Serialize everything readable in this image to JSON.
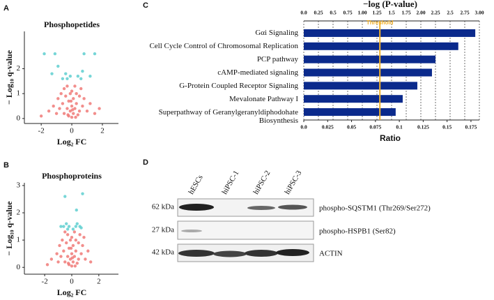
{
  "chart_data": [
    {
      "type": "scatter",
      "panel": "A",
      "title": "Phosphopetides",
      "xlabel": "Log₂ FC",
      "ylabel": "− Log₁₀ q-value",
      "xlim": [
        -3.1,
        3.05
      ],
      "ylim": [
        -0.2,
        3.5
      ],
      "xticks": [
        -2,
        0,
        2
      ],
      "yticks": [
        0,
        1,
        2
      ],
      "series": [
        {
          "color": "#f07a78",
          "x": [
            -1.5,
            -1.2,
            -1,
            -0.9,
            -0.8,
            -0.7,
            -0.6,
            -0.5,
            -0.5,
            -0.4,
            -0.3,
            -0.3,
            -0.2,
            -0.2,
            -0.1,
            -0.1,
            0,
            0,
            0,
            0.1,
            0.1,
            0.2,
            0.2,
            0.3,
            0.3,
            0.4,
            0.5,
            0.5,
            0.6,
            0.7,
            0.8,
            1.0,
            1.2,
            1.5,
            -2.0,
            1.8,
            -0.05,
            0.05,
            -0.25,
            0.25
          ],
          "values": [
            0.3,
            0.5,
            0.2,
            0.8,
            0.4,
            1.0,
            0.6,
            0.2,
            1.2,
            0.9,
            0.4,
            1.3,
            0.1,
            0.7,
            1.0,
            0.3,
            0.05,
            0.5,
            1.1,
            0.2,
            0.8,
            1.3,
            0.4,
            0.6,
            1.0,
            0.15,
            0.9,
            0.3,
            1.2,
            0.5,
            0.8,
            0.3,
            0.6,
            0.2,
            0.1,
            0.4,
            0.7,
            0.35,
            0.15,
            0.05
          ]
        },
        {
          "color": "#5fcfd0",
          "x": [
            -1.8,
            -1.3,
            -0.9,
            -0.6,
            -0.4,
            -0.3,
            0.4,
            0.6,
            0.7,
            0.8,
            1.2,
            1.5,
            -1.1,
            -0.1
          ],
          "values": [
            2.6,
            1.8,
            2.1,
            1.6,
            1.8,
            1.6,
            1.7,
            1.6,
            1.9,
            2.6,
            1.7,
            2.6,
            2.6,
            1.7
          ]
        }
      ]
    },
    {
      "type": "scatter",
      "panel": "B",
      "title": "Phosphoproteins",
      "xlabel": "Log₂ FC",
      "ylabel": "− Log₁₀ q-value",
      "xlim": [
        -3.5,
        3.45
      ],
      "ylim": [
        -0.25,
        3.1
      ],
      "xticks": [
        -2,
        0,
        2
      ],
      "yticks": [
        0,
        1,
        2,
        3
      ],
      "series": [
        {
          "color": "#f07a78",
          "x": [
            -1.5,
            -1.1,
            -1,
            -0.9,
            -0.8,
            -0.7,
            -0.6,
            -0.5,
            -0.5,
            -0.4,
            -0.3,
            -0.3,
            -0.2,
            -0.2,
            -0.1,
            -0.1,
            0,
            0,
            0,
            0.1,
            0.1,
            0.2,
            0.2,
            0.3,
            0.3,
            0.4,
            0.5,
            0.5,
            0.6,
            0.7,
            0.8,
            1.0,
            1.2,
            1.4,
            -1.8,
            -0.05,
            0.05,
            -0.25,
            0.25,
            0.9
          ],
          "values": [
            0.3,
            0.5,
            0.2,
            0.8,
            0.4,
            1.0,
            0.6,
            0.2,
            1.3,
            0.9,
            0.4,
            1.2,
            0.1,
            0.7,
            1.0,
            0.3,
            0.05,
            0.5,
            1.1,
            0.2,
            0.8,
            1.3,
            0.4,
            0.6,
            1.0,
            0.15,
            0.9,
            0.3,
            1.2,
            0.5,
            0.8,
            0.3,
            0.6,
            0.2,
            0.1,
            0.7,
            0.35,
            0.15,
            0.05,
            1.1
          ]
        },
        {
          "color": "#5fcfd0",
          "x": [
            -0.6,
            -0.4,
            -0.3,
            -0.2,
            0.1,
            0.3,
            0.4,
            0.6,
            0.7,
            0.8,
            -0.5,
            0.35,
            -0.8
          ],
          "values": [
            1.5,
            1.6,
            1.4,
            1.5,
            1.4,
            1.5,
            1.6,
            1.5,
            1.45,
            2.7,
            2.6,
            2.1,
            1.5
          ]
        }
      ]
    },
    {
      "type": "hbar",
      "panel": "C",
      "title": "−log (P-value)",
      "x2label": "Ratio",
      "categories": [
        "Gαi Signaling",
        "Cell Cycle Control of Chromosomal Replication",
        "PCP pathway",
        "cAMP-mediated signaling",
        "G-Protein Coupled Receptor Signaling",
        "Mevalonate Pathway I",
        "Superpathway of Geranylgeranyldiphodohate Biosynthesis"
      ],
      "values": [
        2.93,
        2.64,
        2.25,
        2.19,
        1.94,
        1.69,
        1.57
      ],
      "color": "#0b2a8c",
      "xlim": [
        0,
        3
      ],
      "xticks": [
        {
          "value": 0,
          "label": "0.0"
        },
        0.25,
        0.5,
        0.75,
        {
          "value": 1,
          "label": "1.00"
        },
        1.25,
        1.5,
        1.75,
        {
          "value": 2,
          "label": "2.00"
        },
        2.25,
        2.5,
        2.75,
        {
          "value": 3,
          "label": "3.00"
        }
      ],
      "x2lim": [
        0,
        0.1838
      ],
      "x2ticks": [
        {
          "value": 0,
          "label": "0.0"
        },
        0.025,
        0.05,
        0.075,
        0.1,
        0.125,
        0.15,
        0.175
      ],
      "threshold": {
        "value": 1.3,
        "label": "Threshold",
        "color": "#f2b12c"
      },
      "grid": true
    }
  ],
  "blot": {
    "panel": "D",
    "lanes": [
      "hESCs",
      "hiPSC-1",
      "hiPSC-2",
      "hiPSC-3"
    ],
    "markers": [
      "62 kDa",
      "27 kDa",
      "42 kDa"
    ],
    "proteins": [
      "phospho-SQSTM1 (Thr269/Ser272)",
      "phospho-HSPB1 (Ser82)",
      "ACTIN"
    ]
  }
}
